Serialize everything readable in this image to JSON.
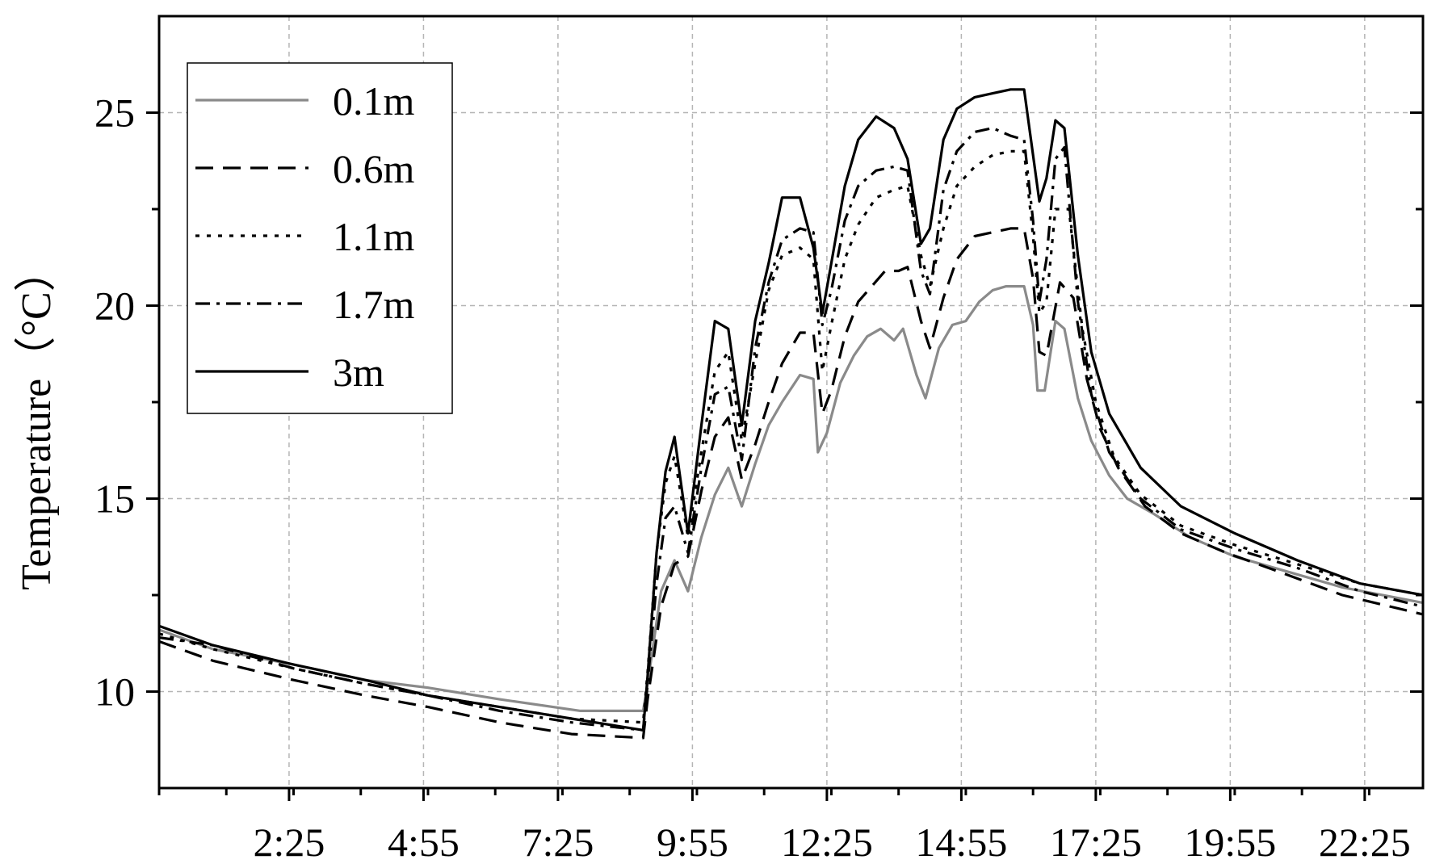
{
  "chart_data": {
    "type": "line",
    "title": "",
    "xlabel": "",
    "ylabel": "Temperature（°C）",
    "xlim": [
      0,
      1410
    ],
    "ylim": [
      7.5,
      27.5
    ],
    "grid": true,
    "legend_position": "top-left",
    "x_tick_labels": [
      "2:25",
      "4:55",
      "7:25",
      "9:55",
      "12:25",
      "14:55",
      "17:25",
      "19:55",
      "22:25"
    ],
    "x_tick_values": [
      145,
      295,
      445,
      595,
      745,
      895,
      1045,
      1195,
      1345
    ],
    "x_minor_step": 75,
    "y_ticks": [
      10,
      15,
      20,
      25
    ],
    "series": [
      {
        "name": "0.1m",
        "color": "#8a8a8a",
        "dash": "",
        "points": [
          [
            0,
            11.6
          ],
          [
            60,
            11.1
          ],
          [
            150,
            10.7
          ],
          [
            230,
            10.3
          ],
          [
            300,
            10.1
          ],
          [
            380,
            9.8
          ],
          [
            470,
            9.5
          ],
          [
            540,
            9.5
          ],
          [
            545,
            10.2
          ],
          [
            560,
            12.6
          ],
          [
            575,
            13.4
          ],
          [
            590,
            12.6
          ],
          [
            605,
            14
          ],
          [
            620,
            15.1
          ],
          [
            635,
            15.8
          ],
          [
            650,
            14.8
          ],
          [
            665,
            15.9
          ],
          [
            680,
            16.9
          ],
          [
            695,
            17.5
          ],
          [
            715,
            18.2
          ],
          [
            730,
            18.1
          ],
          [
            735,
            16.2
          ],
          [
            745,
            16.7
          ],
          [
            760,
            18
          ],
          [
            775,
            18.7
          ],
          [
            790,
            19.2
          ],
          [
            805,
            19.4
          ],
          [
            820,
            19.1
          ],
          [
            830,
            19.4
          ],
          [
            845,
            18.2
          ],
          [
            855,
            17.6
          ],
          [
            870,
            18.9
          ],
          [
            885,
            19.5
          ],
          [
            900,
            19.6
          ],
          [
            915,
            20.1
          ],
          [
            930,
            20.4
          ],
          [
            945,
            20.5
          ],
          [
            965,
            20.5
          ],
          [
            975,
            19.5
          ],
          [
            980,
            17.8
          ],
          [
            988,
            17.8
          ],
          [
            1000,
            19.6
          ],
          [
            1010,
            19.4
          ],
          [
            1025,
            17.6
          ],
          [
            1040,
            16.5
          ],
          [
            1060,
            15.6
          ],
          [
            1080,
            15
          ],
          [
            1110,
            14.6
          ],
          [
            1150,
            14
          ],
          [
            1200,
            13.5
          ],
          [
            1260,
            13.1
          ],
          [
            1320,
            12.7
          ],
          [
            1410,
            12.3
          ]
        ]
      },
      {
        "name": "0.6m",
        "color": "#000000",
        "dash": "22 12",
        "points": [
          [
            0,
            11.3
          ],
          [
            60,
            10.8
          ],
          [
            150,
            10.3
          ],
          [
            230,
            9.9
          ],
          [
            300,
            9.6
          ],
          [
            380,
            9.2
          ],
          [
            460,
            8.9
          ],
          [
            540,
            8.8
          ],
          [
            545,
            9.8
          ],
          [
            560,
            12.2
          ],
          [
            575,
            13.3
          ],
          [
            590,
            13.5
          ],
          [
            605,
            15.2
          ],
          [
            620,
            16.6
          ],
          [
            635,
            17.1
          ],
          [
            650,
            15.5
          ],
          [
            665,
            16.4
          ],
          [
            680,
            17.5
          ],
          [
            695,
            18.5
          ],
          [
            715,
            19.3
          ],
          [
            730,
            19.3
          ],
          [
            740,
            17.2
          ],
          [
            750,
            17.8
          ],
          [
            765,
            19.2
          ],
          [
            780,
            20.1
          ],
          [
            795,
            20.5
          ],
          [
            810,
            20.9
          ],
          [
            825,
            20.9
          ],
          [
            835,
            21
          ],
          [
            850,
            19.6
          ],
          [
            860,
            18.9
          ],
          [
            875,
            20.2
          ],
          [
            890,
            21.2
          ],
          [
            910,
            21.8
          ],
          [
            930,
            21.9
          ],
          [
            950,
            22
          ],
          [
            965,
            22
          ],
          [
            975,
            20.7
          ],
          [
            982,
            18.8
          ],
          [
            990,
            18.7
          ],
          [
            1005,
            20.6
          ],
          [
            1020,
            20.2
          ],
          [
            1035,
            18.1
          ],
          [
            1050,
            16.8
          ],
          [
            1070,
            15.8
          ],
          [
            1100,
            14.8
          ],
          [
            1140,
            14.1
          ],
          [
            1190,
            13.6
          ],
          [
            1250,
            13.1
          ],
          [
            1320,
            12.5
          ],
          [
            1410,
            12
          ]
        ]
      },
      {
        "name": "1.1m",
        "color": "#000000",
        "dash": "5 9",
        "points": [
          [
            0,
            11.5
          ],
          [
            60,
            11.1
          ],
          [
            150,
            10.6
          ],
          [
            230,
            10.2
          ],
          [
            300,
            9.9
          ],
          [
            380,
            9.6
          ],
          [
            460,
            9.3
          ],
          [
            540,
            9.2
          ],
          [
            545,
            10.5
          ],
          [
            555,
            13.6
          ],
          [
            565,
            15.4
          ],
          [
            575,
            16.1
          ],
          [
            590,
            14
          ],
          [
            605,
            16.2
          ],
          [
            620,
            18.3
          ],
          [
            635,
            18.8
          ],
          [
            650,
            16.5
          ],
          [
            665,
            18.5
          ],
          [
            680,
            20.4
          ],
          [
            695,
            21.3
          ],
          [
            715,
            21.5
          ],
          [
            730,
            21.2
          ],
          [
            740,
            18.3
          ],
          [
            750,
            19.5
          ],
          [
            765,
            21.2
          ],
          [
            780,
            22.1
          ],
          [
            800,
            22.8
          ],
          [
            820,
            23
          ],
          [
            835,
            23.1
          ],
          [
            850,
            21.3
          ],
          [
            860,
            20.5
          ],
          [
            875,
            22
          ],
          [
            890,
            23.1
          ],
          [
            910,
            23.6
          ],
          [
            930,
            23.9
          ],
          [
            950,
            24
          ],
          [
            965,
            24
          ],
          [
            975,
            21.8
          ],
          [
            982,
            19.8
          ],
          [
            990,
            20.1
          ],
          [
            1000,
            22.5
          ],
          [
            1015,
            22.5
          ],
          [
            1030,
            19.4
          ],
          [
            1045,
            17.5
          ],
          [
            1065,
            16.1
          ],
          [
            1095,
            15.1
          ],
          [
            1140,
            14.3
          ],
          [
            1200,
            13.8
          ],
          [
            1270,
            13.3
          ],
          [
            1340,
            12.8
          ],
          [
            1410,
            12.5
          ]
        ]
      },
      {
        "name": "1.7m",
        "color": "#000000",
        "dash": "18 8 4 8",
        "points": [
          [
            0,
            11.4
          ],
          [
            60,
            11.2
          ],
          [
            150,
            10.6
          ],
          [
            230,
            10.2
          ],
          [
            300,
            9.9
          ],
          [
            380,
            9.5
          ],
          [
            460,
            9.2
          ],
          [
            540,
            9
          ],
          [
            545,
            10.2
          ],
          [
            555,
            12.8
          ],
          [
            565,
            14.5
          ],
          [
            575,
            14.8
          ],
          [
            590,
            13.6
          ],
          [
            605,
            15.8
          ],
          [
            620,
            17.7
          ],
          [
            635,
            17.9
          ],
          [
            650,
            16
          ],
          [
            665,
            18.9
          ],
          [
            680,
            20.6
          ],
          [
            695,
            21.7
          ],
          [
            715,
            22
          ],
          [
            730,
            21.9
          ],
          [
            740,
            19.5
          ],
          [
            750,
            20.4
          ],
          [
            765,
            22.2
          ],
          [
            780,
            23.1
          ],
          [
            800,
            23.5
          ],
          [
            820,
            23.6
          ],
          [
            835,
            23.5
          ],
          [
            850,
            20.9
          ],
          [
            860,
            20.3
          ],
          [
            875,
            23
          ],
          [
            890,
            24
          ],
          [
            910,
            24.5
          ],
          [
            930,
            24.6
          ],
          [
            950,
            24.4
          ],
          [
            965,
            24.3
          ],
          [
            975,
            22.2
          ],
          [
            982,
            20.1
          ],
          [
            990,
            21.2
          ],
          [
            1000,
            23.8
          ],
          [
            1010,
            24.1
          ],
          [
            1025,
            20.1
          ],
          [
            1040,
            17.7
          ],
          [
            1060,
            16.2
          ],
          [
            1095,
            15
          ],
          [
            1140,
            14.2
          ],
          [
            1200,
            13.7
          ],
          [
            1270,
            13.2
          ],
          [
            1340,
            12.6
          ],
          [
            1410,
            12.2
          ]
        ]
      },
      {
        "name": "3m",
        "color": "#000000",
        "dash": "",
        "points": [
          [
            0,
            11.7
          ],
          [
            60,
            11.2
          ],
          [
            150,
            10.7
          ],
          [
            230,
            10.3
          ],
          [
            300,
            9.9
          ],
          [
            380,
            9.6
          ],
          [
            460,
            9.3
          ],
          [
            540,
            9
          ],
          [
            545,
            10.4
          ],
          [
            555,
            13.6
          ],
          [
            565,
            15.7
          ],
          [
            575,
            16.6
          ],
          [
            590,
            14.1
          ],
          [
            605,
            16.9
          ],
          [
            620,
            19.6
          ],
          [
            635,
            19.4
          ],
          [
            650,
            16.9
          ],
          [
            665,
            19.6
          ],
          [
            680,
            21.1
          ],
          [
            695,
            22.8
          ],
          [
            715,
            22.8
          ],
          [
            730,
            21.5
          ],
          [
            740,
            19.8
          ],
          [
            750,
            21.1
          ],
          [
            765,
            23.1
          ],
          [
            780,
            24.3
          ],
          [
            800,
            24.9
          ],
          [
            820,
            24.6
          ],
          [
            835,
            23.8
          ],
          [
            850,
            21.6
          ],
          [
            860,
            22
          ],
          [
            875,
            24.3
          ],
          [
            890,
            25.1
          ],
          [
            910,
            25.4
          ],
          [
            930,
            25.5
          ],
          [
            950,
            25.6
          ],
          [
            965,
            25.6
          ],
          [
            975,
            23.9
          ],
          [
            982,
            22.7
          ],
          [
            990,
            23.3
          ],
          [
            1000,
            24.8
          ],
          [
            1010,
            24.6
          ],
          [
            1025,
            21.3
          ],
          [
            1040,
            18.8
          ],
          [
            1060,
            17.2
          ],
          [
            1095,
            15.8
          ],
          [
            1140,
            14.8
          ],
          [
            1200,
            14.1
          ],
          [
            1270,
            13.4
          ],
          [
            1340,
            12.8
          ],
          [
            1410,
            12.5
          ]
        ]
      }
    ]
  }
}
